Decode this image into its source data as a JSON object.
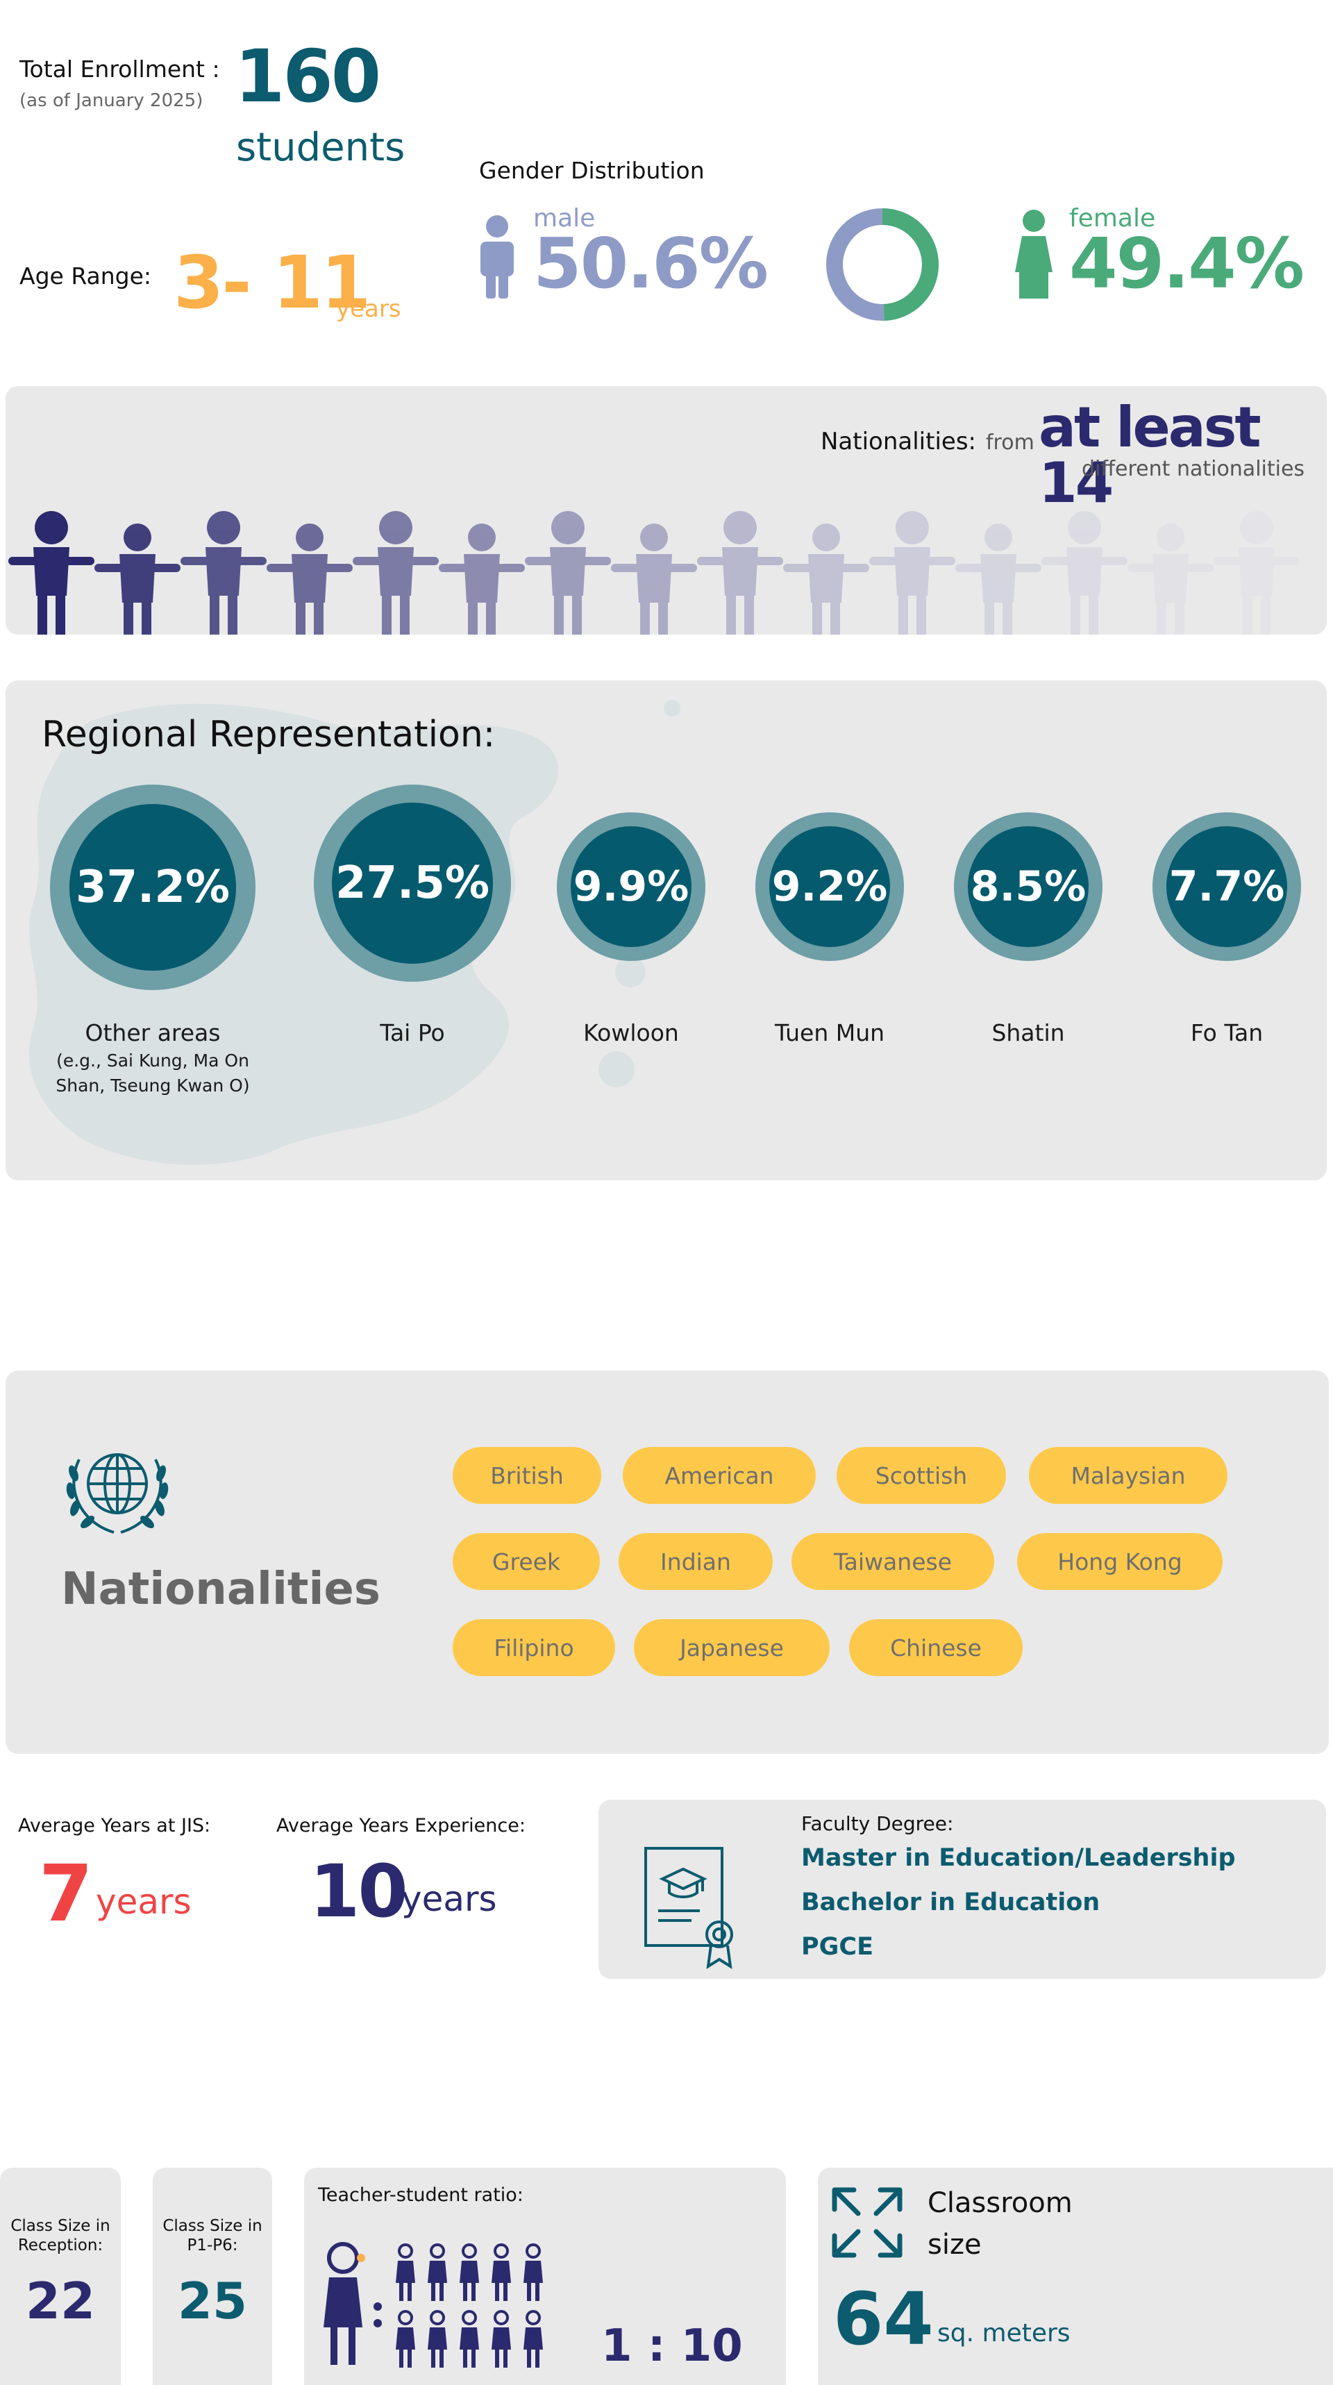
{
  "enrollment": {
    "label": "Total Enrollment :",
    "as_of": "(as of January 2025)",
    "count": "160",
    "unit": "students"
  },
  "age": {
    "label": "Age Range:",
    "range": "3- 11",
    "unit": "years"
  },
  "gender": {
    "title": "Gender Distribution",
    "male_label": "male",
    "male_pct": "50.6%",
    "female_label": "female",
    "female_pct": "49.4%",
    "male_value": 50.6,
    "female_value": 49.4,
    "male_color": "#8e9bc6",
    "female_color": "#4aaa7a"
  },
  "nationalities_banner": {
    "label": "Nationalities:",
    "from": "from",
    "count_text": "at least 14",
    "sub": "different nationalities"
  },
  "regional": {
    "title": "Regional Representation:",
    "regions": [
      {
        "pct": "37.2%",
        "name": "Other areas",
        "note": "(e.g., Sai Kung, Ma On Shan, Tseung Kwan O)"
      },
      {
        "pct": "27.5%",
        "name": "Tai Po",
        "note": ""
      },
      {
        "pct": "9.9%",
        "name": "Kowloon",
        "note": ""
      },
      {
        "pct": "9.2%",
        "name": "Tuen Mun",
        "note": ""
      },
      {
        "pct": "8.5%",
        "name": "Shatin",
        "note": ""
      },
      {
        "pct": "7.7%",
        "name": "Fo Tan",
        "note": ""
      }
    ]
  },
  "nationalities": {
    "title": "Nationalities",
    "icon": "globe-laurel-icon",
    "list": [
      "British",
      "American",
      "Scottish",
      "Malaysian",
      "Greek",
      "Indian",
      "Taiwanese",
      "Hong Kong",
      "Filipino",
      "Japanese",
      "Chinese"
    ]
  },
  "faculty": {
    "avg_jis_label": "Average Years at JIS:",
    "avg_jis_value": "7",
    "avg_jis_unit": "years",
    "avg_exp_label": "Average Years Experience:",
    "avg_exp_value": "10",
    "avg_exp_unit": "years",
    "degree_label": "Faculty Degree:",
    "degrees": [
      "Master in Education/Leadership",
      "Bachelor in Education",
      "PGCE"
    ],
    "degree_icon": "certificate-icon"
  },
  "classes": {
    "reception_label": "Class Size in Reception:",
    "reception_value": "22",
    "p1p6_label": "Class Size in P1-P6:",
    "p1p6_value": "25",
    "ratio_label": "Teacher-student ratio:",
    "ratio_value": "1 : 10",
    "classroom_label_1": "Classroom",
    "classroom_label_2": "size",
    "classroom_value": "64",
    "classroom_unit": "sq. meters",
    "expand_icon": "expand-arrows-icon"
  }
}
